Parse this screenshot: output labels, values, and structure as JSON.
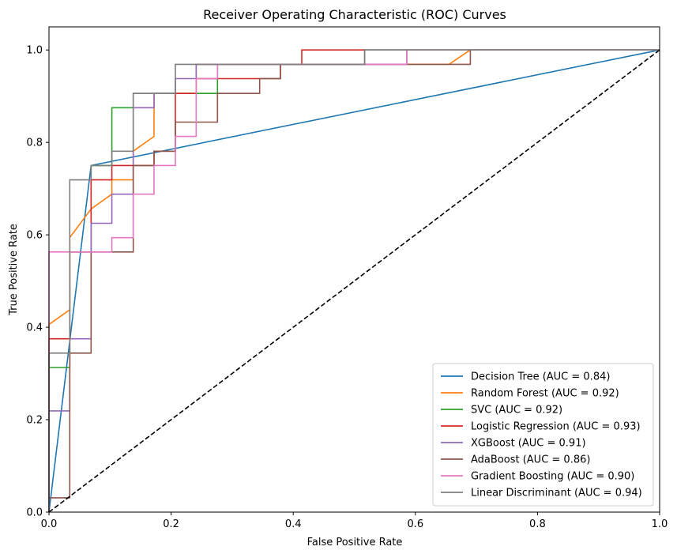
{
  "chart_data": {
    "type": "line",
    "title": "Receiver Operating Characteristic (ROC) Curves",
    "xlabel": "False Positive Rate",
    "ylabel": "True Positive Rate",
    "xlim": [
      0.0,
      1.0
    ],
    "ylim": [
      0.0,
      1.05
    ],
    "xticks": [
      "0.0",
      "0.2",
      "0.4",
      "0.6",
      "0.8",
      "1.0"
    ],
    "yticks": [
      "0.0",
      "0.2",
      "0.4",
      "0.6",
      "0.8",
      "1.0"
    ],
    "grid": false,
    "legend_position": "lower right",
    "series": [
      {
        "name": "Decision Tree (AUC = 0.84)",
        "color": "#1f77b4",
        "step": false,
        "points": [
          [
            0,
            0
          ],
          [
            0.069,
            0.75
          ],
          [
            1,
            1
          ]
        ]
      },
      {
        "name": "Random Forest (AUC = 0.92)",
        "color": "#ff7f0e",
        "step": false,
        "points": [
          [
            0,
            0
          ],
          [
            0,
            0.406
          ],
          [
            0.034,
            0.438
          ],
          [
            0.034,
            0.594
          ],
          [
            0.069,
            0.656
          ],
          [
            0.103,
            0.688
          ],
          [
            0.103,
            0.719
          ],
          [
            0.138,
            0.719
          ],
          [
            0.138,
            0.781
          ],
          [
            0.172,
            0.813
          ],
          [
            0.172,
            0.906
          ],
          [
            0.241,
            0.906
          ],
          [
            0.241,
            0.969
          ],
          [
            0.655,
            0.969
          ],
          [
            0.69,
            1.0
          ],
          [
            1.0,
            1.0
          ]
        ]
      },
      {
        "name": "SVC (AUC = 0.92)",
        "color": "#2ca02c",
        "step": true,
        "points": [
          [
            0,
            0
          ],
          [
            0,
            0.313
          ],
          [
            0.034,
            0.313
          ],
          [
            0.034,
            0.563
          ],
          [
            0.069,
            0.563
          ],
          [
            0.069,
            0.75
          ],
          [
            0.103,
            0.75
          ],
          [
            0.103,
            0.875
          ],
          [
            0.138,
            0.875
          ],
          [
            0.138,
            0.906
          ],
          [
            0.276,
            0.906
          ],
          [
            0.276,
            0.969
          ],
          [
            0.517,
            0.969
          ],
          [
            0.517,
            1.0
          ],
          [
            1.0,
            1.0
          ]
        ]
      },
      {
        "name": "Logistic Regression (AUC = 0.93)",
        "color": "#d62728",
        "step": true,
        "points": [
          [
            0,
            0
          ],
          [
            0,
            0.375
          ],
          [
            0.034,
            0.375
          ],
          [
            0.034,
            0.563
          ],
          [
            0.069,
            0.563
          ],
          [
            0.069,
            0.719
          ],
          [
            0.103,
            0.719
          ],
          [
            0.103,
            0.75
          ],
          [
            0.172,
            0.75
          ],
          [
            0.172,
            0.781
          ],
          [
            0.207,
            0.781
          ],
          [
            0.207,
            0.906
          ],
          [
            0.241,
            0.906
          ],
          [
            0.241,
            0.938
          ],
          [
            0.379,
            0.938
          ],
          [
            0.379,
            0.969
          ],
          [
            0.414,
            0.969
          ],
          [
            0.414,
            1.0
          ],
          [
            1.0,
            1.0
          ]
        ]
      },
      {
        "name": "XGBoost (AUC = 0.91)",
        "color": "#9467bd",
        "step": true,
        "points": [
          [
            0,
            0
          ],
          [
            0,
            0.219
          ],
          [
            0.034,
            0.219
          ],
          [
            0.034,
            0.375
          ],
          [
            0.069,
            0.375
          ],
          [
            0.069,
            0.625
          ],
          [
            0.103,
            0.625
          ],
          [
            0.103,
            0.688
          ],
          [
            0.138,
            0.688
          ],
          [
            0.138,
            0.875
          ],
          [
            0.172,
            0.875
          ],
          [
            0.172,
            0.906
          ],
          [
            0.207,
            0.906
          ],
          [
            0.207,
            0.938
          ],
          [
            0.241,
            0.938
          ],
          [
            0.241,
            0.969
          ],
          [
            0.586,
            0.969
          ],
          [
            0.586,
            1.0
          ],
          [
            1.0,
            1.0
          ]
        ]
      },
      {
        "name": "AdaBoost (AUC = 0.86)",
        "color": "#8c564b",
        "step": true,
        "points": [
          [
            0,
            0
          ],
          [
            0,
            0.031
          ],
          [
            0.034,
            0.031
          ],
          [
            0.034,
            0.344
          ],
          [
            0.069,
            0.344
          ],
          [
            0.069,
            0.563
          ],
          [
            0.138,
            0.563
          ],
          [
            0.138,
            0.75
          ],
          [
            0.172,
            0.75
          ],
          [
            0.172,
            0.781
          ],
          [
            0.207,
            0.781
          ],
          [
            0.207,
            0.844
          ],
          [
            0.276,
            0.844
          ],
          [
            0.276,
            0.906
          ],
          [
            0.345,
            0.906
          ],
          [
            0.345,
            0.938
          ],
          [
            0.379,
            0.938
          ],
          [
            0.379,
            0.969
          ],
          [
            0.69,
            0.969
          ],
          [
            0.69,
            1.0
          ],
          [
            1.0,
            1.0
          ]
        ]
      },
      {
        "name": "Gradient Boosting (AUC = 0.90)",
        "color": "#e377c2",
        "step": true,
        "points": [
          [
            0,
            0
          ],
          [
            0,
            0.563
          ],
          [
            0.103,
            0.563
          ],
          [
            0.103,
            0.594
          ],
          [
            0.138,
            0.594
          ],
          [
            0.138,
            0.688
          ],
          [
            0.172,
            0.688
          ],
          [
            0.172,
            0.75
          ],
          [
            0.207,
            0.75
          ],
          [
            0.207,
            0.813
          ],
          [
            0.241,
            0.813
          ],
          [
            0.241,
            0.938
          ],
          [
            0.276,
            0.938
          ],
          [
            0.276,
            0.969
          ],
          [
            0.586,
            0.969
          ],
          [
            0.586,
            1.0
          ],
          [
            1.0,
            1.0
          ]
        ]
      },
      {
        "name": "Linear Discriminant (AUC = 0.94)",
        "color": "#7f7f7f",
        "step": true,
        "points": [
          [
            0,
            0
          ],
          [
            0,
            0.344
          ],
          [
            0.034,
            0.344
          ],
          [
            0.034,
            0.719
          ],
          [
            0.069,
            0.719
          ],
          [
            0.069,
            0.75
          ],
          [
            0.103,
            0.75
          ],
          [
            0.103,
            0.781
          ],
          [
            0.138,
            0.781
          ],
          [
            0.138,
            0.906
          ],
          [
            0.207,
            0.906
          ],
          [
            0.207,
            0.969
          ],
          [
            0.517,
            0.969
          ],
          [
            0.517,
            1.0
          ],
          [
            1.0,
            1.0
          ]
        ]
      }
    ],
    "reference_line": {
      "color": "#000000",
      "dashed": true,
      "points": [
        [
          0,
          0
        ],
        [
          1,
          1
        ]
      ]
    }
  }
}
